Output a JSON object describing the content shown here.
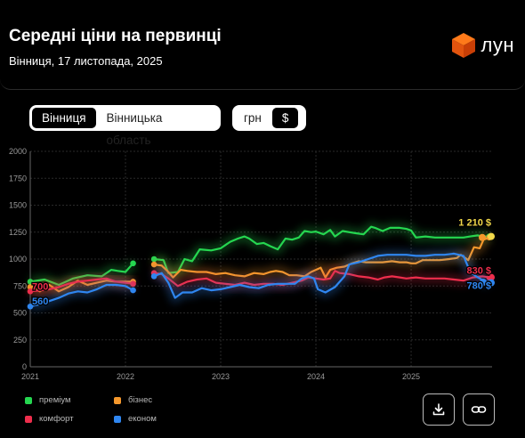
{
  "header": {
    "title": "Середні ціни на первинці",
    "subtitle": "Вінниця, 17 листопада, 2025",
    "logo_text": "лун"
  },
  "region_toggle": {
    "options": [
      "Вінниця",
      "Вінницька область"
    ],
    "selected": "Вінниця"
  },
  "currency_toggle": {
    "options": [
      "грн",
      "$"
    ],
    "selected": "$"
  },
  "colors": {
    "premium": "#25d650",
    "business": "#f5982c",
    "comfort": "#ee2e4c",
    "economy": "#2f86f0",
    "end_label_premium": "#f2d94a"
  },
  "chart_data": {
    "type": "line",
    "ylim": [
      0,
      2000
    ],
    "yticks": [
      "0",
      "250",
      "500",
      "750",
      "1000",
      "1250",
      "1500",
      "1750",
      "2000"
    ],
    "xlim": [
      2021.0,
      2025.85
    ],
    "xticks": [
      "2021",
      "2022",
      "2023",
      "2024",
      "2025"
    ],
    "grid": true,
    "legend_placement": "bottom-left",
    "start_labels": [
      {
        "text": "700",
        "series": "комфорт"
      },
      {
        "text": "560",
        "series": "економ"
      }
    ],
    "end_labels": [
      {
        "text": "1 210 $",
        "series": "преміум"
      },
      {
        "text": "830 $",
        "series": "комфорт"
      },
      {
        "text": "780 $",
        "series": "економ"
      }
    ],
    "series": [
      {
        "name": "преміум",
        "key": "premium",
        "segments": [
          [
            [
              2021.0,
              790
            ],
            [
              2021.15,
              810
            ],
            [
              2021.3,
              760
            ],
            [
              2021.45,
              820
            ],
            [
              2021.6,
              850
            ],
            [
              2021.75,
              840
            ],
            [
              2021.85,
              900
            ],
            [
              2021.92,
              890
            ],
            [
              2022.0,
              880
            ],
            [
              2022.08,
              960
            ]
          ],
          [
            [
              2022.3,
              1000
            ],
            [
              2022.4,
              990
            ],
            [
              2022.45,
              870
            ],
            [
              2022.55,
              880
            ],
            [
              2022.62,
              1000
            ],
            [
              2022.7,
              980
            ],
            [
              2022.78,
              1090
            ],
            [
              2022.9,
              1080
            ],
            [
              2023.0,
              1100
            ],
            [
              2023.1,
              1160
            ],
            [
              2023.18,
              1190
            ],
            [
              2023.25,
              1210
            ],
            [
              2023.3,
              1190
            ],
            [
              2023.38,
              1140
            ],
            [
              2023.45,
              1150
            ],
            [
              2023.52,
              1120
            ],
            [
              2023.6,
              1090
            ],
            [
              2023.68,
              1190
            ],
            [
              2023.75,
              1180
            ],
            [
              2023.82,
              1200
            ],
            [
              2023.88,
              1260
            ],
            [
              2023.95,
              1250
            ],
            [
              2024.0,
              1255
            ],
            [
              2024.08,
              1230
            ],
            [
              2024.15,
              1270
            ],
            [
              2024.2,
              1210
            ],
            [
              2024.28,
              1260
            ],
            [
              2024.35,
              1250
            ],
            [
              2024.42,
              1240
            ],
            [
              2024.5,
              1230
            ],
            [
              2024.58,
              1300
            ],
            [
              2024.62,
              1290
            ],
            [
              2024.7,
              1260
            ],
            [
              2024.78,
              1290
            ],
            [
              2024.88,
              1290
            ],
            [
              2024.95,
              1280
            ],
            [
              2025.0,
              1265
            ],
            [
              2025.05,
              1200
            ],
            [
              2025.15,
              1210
            ],
            [
              2025.25,
              1200
            ],
            [
              2025.35,
              1200
            ],
            [
              2025.45,
              1200
            ],
            [
              2025.55,
              1200
            ],
            [
              2025.62,
              1210
            ],
            [
              2025.7,
              1220
            ],
            [
              2025.75,
              1210
            ],
            [
              2025.82,
              1210
            ]
          ]
        ]
      },
      {
        "name": "бізнес",
        "key": "business",
        "segments": [
          [
            [
              2021.0,
              740
            ],
            [
              2021.1,
              700
            ],
            [
              2021.2,
              760
            ],
            [
              2021.3,
              700
            ],
            [
              2021.4,
              740
            ],
            [
              2021.5,
              800
            ],
            [
              2021.6,
              760
            ],
            [
              2021.7,
              780
            ],
            [
              2021.8,
              800
            ],
            [
              2021.9,
              790
            ],
            [
              2022.0,
              790
            ],
            [
              2022.08,
              790
            ]
          ],
          [
            [
              2022.3,
              950
            ],
            [
              2022.38,
              940
            ],
            [
              2022.45,
              880
            ],
            [
              2022.5,
              830
            ],
            [
              2022.58,
              900
            ],
            [
              2022.65,
              890
            ],
            [
              2022.75,
              880
            ],
            [
              2022.85,
              880
            ],
            [
              2022.95,
              860
            ],
            [
              2023.05,
              870
            ],
            [
              2023.15,
              850
            ],
            [
              2023.25,
              840
            ],
            [
              2023.35,
              870
            ],
            [
              2023.45,
              860
            ],
            [
              2023.52,
              880
            ],
            [
              2023.58,
              890
            ],
            [
              2023.65,
              880
            ],
            [
              2023.72,
              850
            ],
            [
              2023.8,
              850
            ],
            [
              2023.88,
              840
            ],
            [
              2023.95,
              880
            ],
            [
              2024.0,
              900
            ],
            [
              2024.05,
              920
            ],
            [
              2024.1,
              830
            ],
            [
              2024.15,
              900
            ],
            [
              2024.22,
              920
            ],
            [
              2024.3,
              930
            ],
            [
              2024.38,
              960
            ],
            [
              2024.45,
              980
            ],
            [
              2024.52,
              970
            ],
            [
              2024.6,
              970
            ],
            [
              2024.7,
              970
            ],
            [
              2024.8,
              980
            ],
            [
              2024.88,
              970
            ],
            [
              2024.95,
              970
            ],
            [
              2025.0,
              960
            ],
            [
              2025.05,
              960
            ],
            [
              2025.12,
              990
            ],
            [
              2025.2,
              990
            ],
            [
              2025.3,
              990
            ],
            [
              2025.4,
              1000
            ],
            [
              2025.48,
              1010
            ],
            [
              2025.52,
              1040
            ],
            [
              2025.6,
              990
            ],
            [
              2025.66,
              1110
            ],
            [
              2025.72,
              1100
            ],
            [
              2025.76,
              1180
            ],
            [
              2025.82,
              1200
            ]
          ]
        ]
      },
      {
        "name": "комфорт",
        "key": "comfort",
        "segments": [
          [
            [
              2021.0,
              700
            ],
            [
              2021.1,
              710
            ],
            [
              2021.2,
              720
            ],
            [
              2021.3,
              740
            ],
            [
              2021.4,
              770
            ],
            [
              2021.5,
              790
            ],
            [
              2021.6,
              800
            ],
            [
              2021.7,
              810
            ],
            [
              2021.8,
              820
            ],
            [
              2021.9,
              790
            ],
            [
              2022.0,
              780
            ],
            [
              2022.08,
              770
            ]
          ],
          [
            [
              2022.3,
              870
            ],
            [
              2022.38,
              860
            ],
            [
              2022.45,
              820
            ],
            [
              2022.55,
              750
            ],
            [
              2022.65,
              790
            ],
            [
              2022.75,
              810
            ],
            [
              2022.85,
              820
            ],
            [
              2022.95,
              780
            ],
            [
              2023.05,
              770
            ],
            [
              2023.15,
              760
            ],
            [
              2023.25,
              780
            ],
            [
              2023.35,
              760
            ],
            [
              2023.45,
              770
            ],
            [
              2023.55,
              770
            ],
            [
              2023.65,
              760
            ],
            [
              2023.75,
              780
            ],
            [
              2023.85,
              800
            ],
            [
              2023.92,
              830
            ],
            [
              2024.0,
              820
            ],
            [
              2024.08,
              810
            ],
            [
              2024.15,
              820
            ],
            [
              2024.2,
              890
            ],
            [
              2024.25,
              870
            ],
            [
              2024.35,
              860
            ],
            [
              2024.45,
              840
            ],
            [
              2024.55,
              830
            ],
            [
              2024.65,
              810
            ],
            [
              2024.72,
              830
            ],
            [
              2024.8,
              840
            ],
            [
              2024.88,
              830
            ],
            [
              2024.95,
              820
            ],
            [
              2025.05,
              830
            ],
            [
              2025.15,
              820
            ],
            [
              2025.25,
              820
            ],
            [
              2025.35,
              820
            ],
            [
              2025.45,
              810
            ],
            [
              2025.55,
              800
            ],
            [
              2025.65,
              830
            ],
            [
              2025.75,
              840
            ],
            [
              2025.82,
              830
            ]
          ]
        ]
      },
      {
        "name": "економ",
        "key": "economy",
        "segments": [
          [
            [
              2021.0,
              560
            ],
            [
              2021.1,
              580
            ],
            [
              2021.2,
              610
            ],
            [
              2021.3,
              640
            ],
            [
              2021.4,
              680
            ],
            [
              2021.5,
              700
            ],
            [
              2021.6,
              690
            ],
            [
              2021.7,
              720
            ],
            [
              2021.8,
              760
            ],
            [
              2021.9,
              760
            ],
            [
              2022.0,
              750
            ],
            [
              2022.08,
              710
            ]
          ],
          [
            [
              2022.3,
              840
            ],
            [
              2022.38,
              870
            ],
            [
              2022.45,
              780
            ],
            [
              2022.52,
              640
            ],
            [
              2022.6,
              690
            ],
            [
              2022.7,
              690
            ],
            [
              2022.8,
              730
            ],
            [
              2022.9,
              710
            ],
            [
              2023.0,
              720
            ],
            [
              2023.1,
              740
            ],
            [
              2023.2,
              760
            ],
            [
              2023.3,
              740
            ],
            [
              2023.4,
              730
            ],
            [
              2023.5,
              760
            ],
            [
              2023.6,
              770
            ],
            [
              2023.7,
              770
            ],
            [
              2023.78,
              770
            ],
            [
              2023.85,
              820
            ],
            [
              2023.92,
              840
            ],
            [
              2023.98,
              820
            ],
            [
              2024.02,
              720
            ],
            [
              2024.1,
              690
            ],
            [
              2024.2,
              740
            ],
            [
              2024.3,
              840
            ],
            [
              2024.35,
              950
            ],
            [
              2024.45,
              970
            ],
            [
              2024.55,
              1000
            ],
            [
              2024.65,
              1030
            ],
            [
              2024.75,
              1040
            ],
            [
              2024.85,
              1040
            ],
            [
              2024.95,
              1040
            ],
            [
              2025.05,
              1030
            ],
            [
              2025.15,
              1030
            ],
            [
              2025.25,
              1040
            ],
            [
              2025.35,
              1040
            ],
            [
              2025.45,
              1050
            ],
            [
              2025.55,
              1030
            ],
            [
              2025.62,
              880
            ],
            [
              2025.7,
              830
            ],
            [
              2025.78,
              790
            ],
            [
              2025.82,
              780
            ]
          ]
        ]
      }
    ]
  },
  "legend": {
    "items": [
      {
        "label": "преміум",
        "key": "premium"
      },
      {
        "label": "бізнес",
        "key": "business"
      },
      {
        "label": "комфорт",
        "key": "comfort"
      },
      {
        "label": "економ",
        "key": "economy"
      }
    ]
  },
  "buttons": {
    "download_icon": "download-icon",
    "link_icon": "link-icon"
  }
}
